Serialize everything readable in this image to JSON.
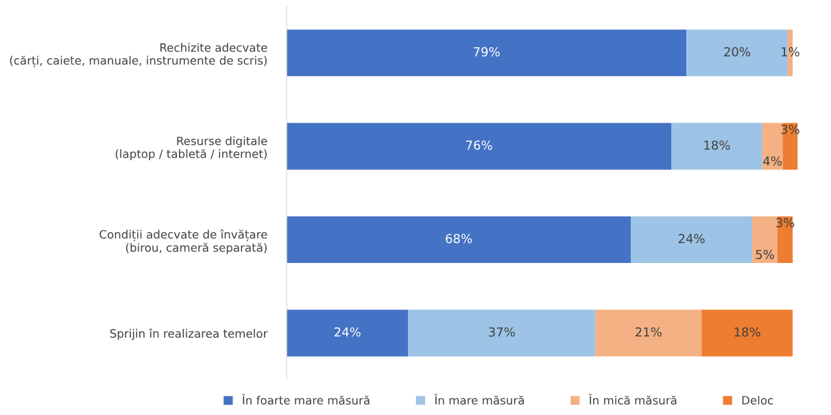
{
  "chart_data": {
    "type": "bar",
    "orientation": "horizontal",
    "stacked": true,
    "legend": "bottom",
    "grid": false,
    "tick_labels": "y",
    "categories": [
      "Rechizite adecvate\n(cărți, caiete, manuale, instrumente de scris)",
      "Resurse digitale\n(laptop / tabletă / internet)",
      "Condiții adecvate de învățare\n(birou, cameră separată)",
      "Sprijin în realizarea temelor"
    ],
    "series": [
      {
        "name": "În foarte mare măsură",
        "color": "#4472c4",
        "values": [
          79,
          76,
          68,
          24
        ],
        "value_labels": [
          "79%",
          "76%",
          "68%",
          "24%"
        ]
      },
      {
        "name": "În mare măsură",
        "color": "#9dc3e6",
        "values": [
          20,
          18,
          24,
          37
        ],
        "value_labels": [
          "20%",
          "18%",
          "24%",
          "37%"
        ]
      },
      {
        "name": "În mică măsură",
        "color": "#f4b183",
        "values": [
          1,
          4,
          5,
          21
        ],
        "value_labels": [
          "1%",
          "4%",
          "5%",
          "21%"
        ]
      },
      {
        "name": "Deloc",
        "color": "#ed7d31",
        "values": [
          null,
          3,
          3,
          18
        ],
        "value_labels": [
          null,
          "3%",
          "3%",
          "18%"
        ]
      }
    ]
  }
}
